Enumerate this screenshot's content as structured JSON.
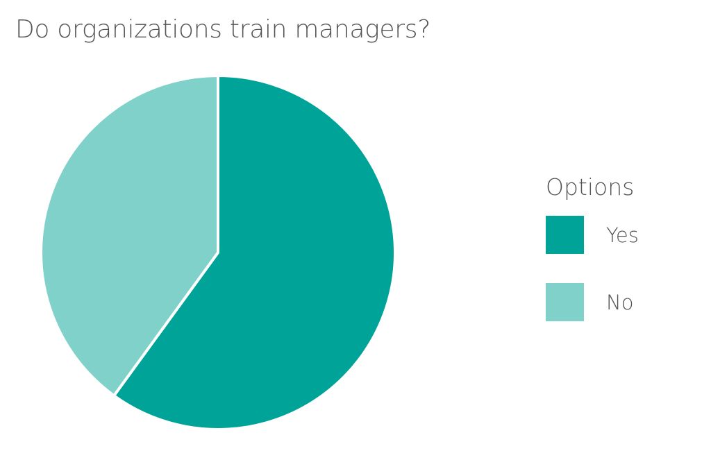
{
  "chart_data": {
    "type": "pie",
    "title": "Do organizations train managers?",
    "legend_title": "Options",
    "legend_position": "right",
    "slices": [
      {
        "label": "Yes",
        "value": 60,
        "color": "#00A398"
      },
      {
        "label": "No",
        "value": 40,
        "color": "#80D1C9"
      }
    ]
  }
}
